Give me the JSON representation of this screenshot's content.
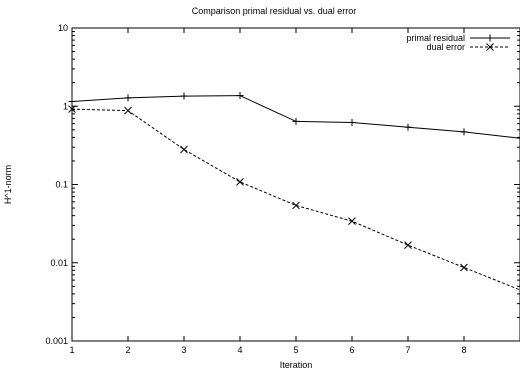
{
  "chart_data": {
    "type": "line",
    "title": "Comparison primal residual vs. dual error",
    "xlabel": "Iteration",
    "ylabel": "H^1-norm",
    "xlim": [
      1,
      9
    ],
    "ylim": [
      0.001,
      10
    ],
    "yscale": "log",
    "grid": false,
    "legend_position": "top-right",
    "x_ticks": [
      "1",
      "2",
      "3",
      "4",
      "5",
      "6",
      "7",
      "8"
    ],
    "y_ticks": [
      {
        "value": 0.001,
        "label": "0.001"
      },
      {
        "value": 0.01,
        "label": "0.01"
      },
      {
        "value": 0.1,
        "label": "0.1"
      },
      {
        "value": 1,
        "label": "1"
      },
      {
        "value": 10,
        "label": "10"
      }
    ],
    "series": [
      {
        "name": "primal residual",
        "marker": "plus",
        "dash": "solid",
        "x": [
          1,
          2,
          3,
          4,
          5,
          6,
          7,
          8,
          9
        ],
        "values": [
          1.15,
          1.28,
          1.35,
          1.37,
          0.64,
          0.62,
          0.54,
          0.47,
          0.39
        ]
      },
      {
        "name": "dual error",
        "marker": "cross",
        "dash": "dashed",
        "x": [
          1,
          2,
          3,
          4,
          5,
          6,
          7,
          8,
          9
        ],
        "values": [
          0.92,
          0.88,
          0.28,
          0.108,
          0.054,
          0.034,
          0.0168,
          0.0087,
          0.0045
        ]
      }
    ]
  }
}
